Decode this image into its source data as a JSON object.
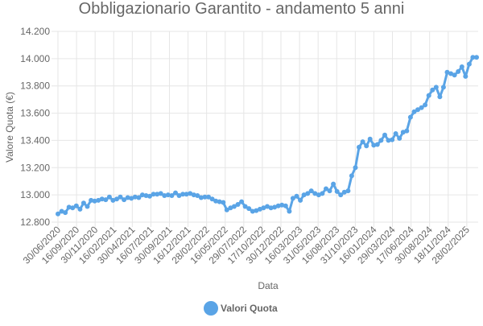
{
  "chart_data": {
    "type": "line",
    "title": "Obbligazionario Garantito - andamento 5 anni",
    "xlabel": "Data",
    "ylabel": "Valore Quota (€)",
    "ylim": [
      12800,
      14200
    ],
    "yticks": [
      12800,
      13000,
      13200,
      13400,
      13600,
      13800,
      14000,
      14200
    ],
    "ytick_labels": [
      "12.800",
      "13.000",
      "13.200",
      "13.400",
      "13.600",
      "13.800",
      "14.000",
      "14.200"
    ],
    "xtick_labels": [
      "30/06/2020",
      "16/09/2020",
      "30/11/2020",
      "16/02/2021",
      "30/04/2021",
      "16/07/2021",
      "30/09/2021",
      "16/12/2021",
      "28/02/2022",
      "16/05/2022",
      "29/07/2022",
      "17/10/2022",
      "30/12/2022",
      "16/03/2023",
      "31/05/2023",
      "16/08/2023",
      "31/10/2023",
      "16/01/2024",
      "29/03/2024",
      "17/06/2024",
      "30/08/2024",
      "18/11/2024",
      "28/02/2025"
    ],
    "grid": true,
    "legend_position": "bottom",
    "series": [
      {
        "name": "Valori Quota",
        "color": "#5aa4e6",
        "values": [
          12860,
          12880,
          12870,
          12910,
          12905,
          12920,
          12895,
          12940,
          12915,
          12960,
          12955,
          12960,
          12970,
          12965,
          12985,
          12960,
          12970,
          12985,
          12965,
          12980,
          12975,
          12985,
          12980,
          13000,
          12995,
          12990,
          13005,
          13005,
          13010,
          12995,
          13000,
          12995,
          13015,
          12995,
          13005,
          13005,
          13010,
          13000,
          12995,
          12980,
          12985,
          12985,
          12970,
          12955,
          12950,
          12945,
          12890,
          12905,
          12915,
          12930,
          12950,
          12915,
          12900,
          12880,
          12885,
          12895,
          12905,
          12915,
          12905,
          12910,
          12920,
          12925,
          12920,
          12880,
          12975,
          12990,
          12960,
          13000,
          13010,
          13030,
          13010,
          13000,
          13010,
          13045,
          13030,
          13080,
          13025,
          13000,
          13020,
          13030,
          13140,
          13200,
          13350,
          13390,
          13360,
          13410,
          13365,
          13370,
          13400,
          13440,
          13400,
          13405,
          13450,
          13415,
          13460,
          13470,
          13570,
          13610,
          13625,
          13640,
          13660,
          13730,
          13770,
          13790,
          13720,
          13790,
          13900,
          13890,
          13880,
          13905,
          13940,
          13870,
          13960,
          14010,
          14010
        ]
      }
    ]
  }
}
